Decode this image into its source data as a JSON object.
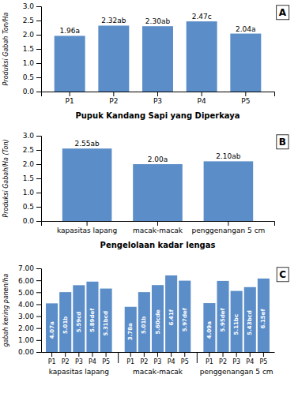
{
  "chart_data": [
    {
      "type": "bar",
      "title": "A",
      "categories": [
        "P1",
        "P2",
        "P3",
        "P4",
        "P5"
      ],
      "values": [
        1.96,
        2.32,
        2.3,
        2.47,
        2.04
      ],
      "value_labels": [
        "1.96a",
        "2.32ab",
        "2.30ab",
        "2.47c",
        "2.04a"
      ],
      "data_labels": true,
      "xlabel": "Pupuk Kandang Sapi yang Diperkaya",
      "ylabel": "Produksi Gabah Ton/Ha",
      "ylim": [
        0,
        3.0
      ],
      "yticks": [
        {
          "value": 0.0,
          "label": "0.0"
        },
        0.5,
        {
          "value": 1.0,
          "label": "1.0"
        },
        1.5,
        {
          "value": 2.0,
          "label": "2.0"
        },
        2.5,
        {
          "value": 3.0,
          "label": "3.0"
        }
      ],
      "color": "#5B8DC8"
    },
    {
      "type": "bar",
      "title": "B",
      "categories": [
        "kapasitas lapang",
        "macak-macak",
        "penggenangan 5 cm"
      ],
      "values": [
        2.55,
        2.0,
        2.1
      ],
      "value_labels": [
        "2.55ab",
        "2.00a",
        "2.10ab"
      ],
      "data_labels": true,
      "xlabel": "Pengelolaan kadar lengas",
      "ylabel": "Produksi Gabah/Ha (Ton)",
      "ylim": [
        0,
        3.0
      ],
      "yticks": [
        {
          "value": 0.0,
          "label": "0.0"
        },
        0.5,
        {
          "value": 1.0,
          "label": "1.0"
        },
        1.5,
        {
          "value": 2.0,
          "label": "2.0"
        },
        2.5,
        {
          "value": 3.0,
          "label": "3.0"
        }
      ],
      "color": "#5B8DC8"
    },
    {
      "type": "bar",
      "title": "C",
      "categories": [
        "P1",
        "P2",
        "P3",
        "P4",
        "P5"
      ],
      "series": [
        {
          "name": "kapasitas lapang",
          "values": [
            4.07,
            5.01,
            5.59,
            5.89,
            5.31
          ],
          "value_labels": [
            "4.07a",
            "5.01b",
            "5.59cd",
            "5.89def",
            "5.31bcd"
          ]
        },
        {
          "name": "macak-macak",
          "values": [
            3.78,
            5.01,
            5.6,
            6.41,
            5.97
          ],
          "value_labels": [
            "3.78a",
            "5.01b",
            "5.60cde",
            "6.41f",
            "5.97def"
          ]
        },
        {
          "name": "penggenangan 5 cm",
          "values": [
            4.09,
            5.95,
            5.11,
            5.43,
            6.15
          ],
          "value_labels": [
            "4.09a",
            "5.95def",
            "5.11bc",
            "5.43bcd",
            "6.15ef"
          ]
        }
      ],
      "data_labels": true,
      "ylabel": "gabah kering panen/ha",
      "ylim": [
        0,
        7.0
      ],
      "yticks": [
        {
          "value": 0.0,
          "label": "0.00"
        },
        {
          "value": 1.0,
          "label": "1.00"
        },
        {
          "value": 2.0,
          "label": "2.00"
        },
        {
          "value": 3.0,
          "label": "3.00"
        },
        {
          "value": 4.0,
          "label": "4.00"
        },
        {
          "value": 5.0,
          "label": "5.00"
        },
        {
          "value": 6.0,
          "label": "6.00"
        },
        {
          "value": 7.0,
          "label": "7.00"
        }
      ],
      "color": "#5B8DC8"
    }
  ]
}
